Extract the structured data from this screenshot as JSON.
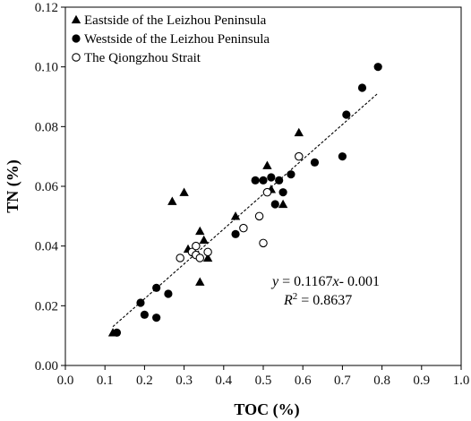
{
  "chart_data": {
    "type": "scatter",
    "xlabel": "TOC (%)",
    "ylabel": "TN (%)",
    "xlim": [
      0.0,
      1.0
    ],
    "ylim": [
      0.0,
      0.12
    ],
    "x_ticks": [
      "0.0",
      "0.1",
      "0.2",
      "0.3",
      "0.4",
      "0.5",
      "0.6",
      "0.7",
      "0.8",
      "0.9",
      "1.0"
    ],
    "y_ticks": [
      "0.00",
      "0.02",
      "0.04",
      "0.06",
      "0.08",
      "0.10",
      "0.12"
    ],
    "grid": false,
    "legend_position": "top-left",
    "series": [
      {
        "name": "Eastside of the Leizhou Peninsula",
        "marker": "triangle",
        "points": [
          [
            0.12,
            0.011
          ],
          [
            0.27,
            0.055
          ],
          [
            0.3,
            0.058
          ],
          [
            0.31,
            0.039
          ],
          [
            0.34,
            0.045
          ],
          [
            0.34,
            0.028
          ],
          [
            0.35,
            0.042
          ],
          [
            0.36,
            0.036
          ],
          [
            0.43,
            0.05
          ],
          [
            0.51,
            0.067
          ],
          [
            0.52,
            0.059
          ],
          [
            0.55,
            0.054
          ],
          [
            0.59,
            0.078
          ]
        ]
      },
      {
        "name": "Westside of the Leizhou Peninsula",
        "marker": "filled-circle",
        "points": [
          [
            0.13,
            0.011
          ],
          [
            0.19,
            0.021
          ],
          [
            0.2,
            0.017
          ],
          [
            0.23,
            0.026
          ],
          [
            0.23,
            0.016
          ],
          [
            0.26,
            0.024
          ],
          [
            0.43,
            0.044
          ],
          [
            0.48,
            0.062
          ],
          [
            0.5,
            0.062
          ],
          [
            0.52,
            0.063
          ],
          [
            0.53,
            0.054
          ],
          [
            0.54,
            0.062
          ],
          [
            0.55,
            0.058
          ],
          [
            0.57,
            0.064
          ],
          [
            0.63,
            0.068
          ],
          [
            0.7,
            0.07
          ],
          [
            0.71,
            0.084
          ],
          [
            0.75,
            0.093
          ],
          [
            0.79,
            0.1
          ]
        ]
      },
      {
        "name": "The Qiongzhou Strait",
        "marker": "open-circle",
        "points": [
          [
            0.29,
            0.036
          ],
          [
            0.32,
            0.038
          ],
          [
            0.33,
            0.04
          ],
          [
            0.33,
            0.037
          ],
          [
            0.34,
            0.036
          ],
          [
            0.36,
            0.038
          ],
          [
            0.45,
            0.046
          ],
          [
            0.49,
            0.05
          ],
          [
            0.5,
            0.041
          ],
          [
            0.51,
            0.058
          ],
          [
            0.59,
            0.07
          ]
        ]
      }
    ],
    "trendline": {
      "slope": 0.1167,
      "intercept": -0.001,
      "x_range": [
        0.12,
        0.79
      ],
      "style": "dashed"
    },
    "annotations": {
      "equation_y": "y",
      "equation_eq": " = 0.1167",
      "equation_x": "x",
      "equation_rest": "- 0.001",
      "r2_label": "R",
      "r2_sup": "2",
      "r2_value": " = 0.8637"
    }
  }
}
